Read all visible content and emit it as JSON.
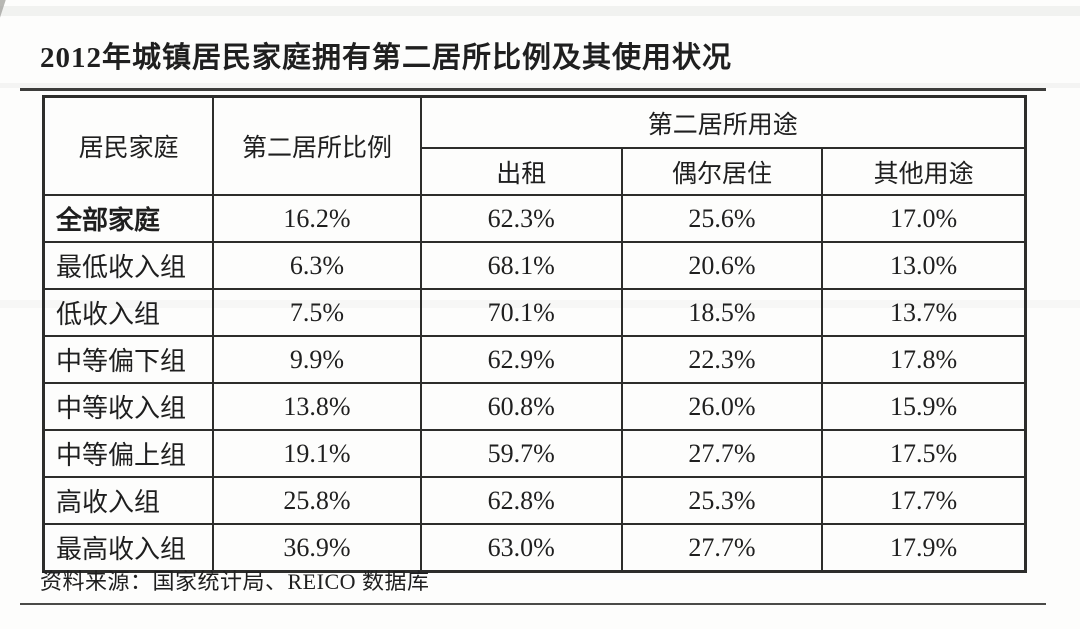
{
  "page": {
    "title": "2012年城镇居民家庭拥有第二居所比例及其使用状况",
    "source": "资料来源：国家统计局、REICO 数据库"
  },
  "table": {
    "header": {
      "family": "居民家庭",
      "ratio": "第二居所比例",
      "usage": "第二居所用途",
      "usage_sub": [
        "出租",
        "偶尔居住",
        "其他用途"
      ]
    },
    "rows": [
      [
        "全部家庭",
        "16.2%",
        "62.3%",
        "25.6%",
        "17.0%"
      ],
      [
        "最低收入组",
        "6.3%",
        "68.1%",
        "20.6%",
        "13.0%"
      ],
      [
        "低收入组",
        "7.5%",
        "70.1%",
        "18.5%",
        "13.7%"
      ],
      [
        "中等偏下组",
        "9.9%",
        "62.9%",
        "22.3%",
        "17.8%"
      ],
      [
        "中等收入组",
        "13.8%",
        "60.8%",
        "26.0%",
        "15.9%"
      ],
      [
        "中等偏上组",
        "19.1%",
        "59.7%",
        "27.7%",
        "17.5%"
      ],
      [
        "高收入组",
        "25.8%",
        "62.8%",
        "25.3%",
        "17.7%"
      ],
      [
        "最高收入组",
        "36.9%",
        "63.0%",
        "27.7%",
        "17.9%"
      ]
    ]
  },
  "chart_data": {
    "type": "table",
    "title": "2012年城镇居民家庭拥有第二居所比例及其使用状况",
    "columns": [
      "居民家庭",
      "第二居所比例",
      "第二居所用途：出租",
      "第二居所用途：偶尔居住",
      "第二居所用途：其他用途"
    ],
    "rows": [
      {
        "居民家庭": "全部家庭",
        "第二居所比例": 16.2,
        "出租": 62.3,
        "偶尔居住": 25.6,
        "其他用途": 17.0
      },
      {
        "居民家庭": "最低收入组",
        "第二居所比例": 6.3,
        "出租": 68.1,
        "偶尔居住": 20.6,
        "其他用途": 13.0
      },
      {
        "居民家庭": "低收入组",
        "第二居所比例": 7.5,
        "出租": 70.1,
        "偶尔居住": 18.5,
        "其他用途": 13.7
      },
      {
        "居民家庭": "中等偏下组",
        "第二居所比例": 9.9,
        "出租": 62.9,
        "偶尔居住": 22.3,
        "其他用途": 17.8
      },
      {
        "居民家庭": "中等收入组",
        "第二居所比例": 13.8,
        "出租": 60.8,
        "偶尔居住": 26.0,
        "其他用途": 15.9
      },
      {
        "居民家庭": "中等偏上组",
        "第二居所比例": 19.1,
        "出租": 59.7,
        "偶尔居住": 27.7,
        "其他用途": 17.5
      },
      {
        "居民家庭": "高收入组",
        "第二居所比例": 25.8,
        "出租": 62.8,
        "偶尔居住": 25.3,
        "其他用途": 17.7
      },
      {
        "居民家庭": "最高收入组",
        "第二居所比例": 36.9,
        "出租": 63.0,
        "偶尔居住": 27.7,
        "其他用途": 17.9
      }
    ],
    "units": "%",
    "source": "资料来源：国家统计局、REICO 数据库"
  }
}
